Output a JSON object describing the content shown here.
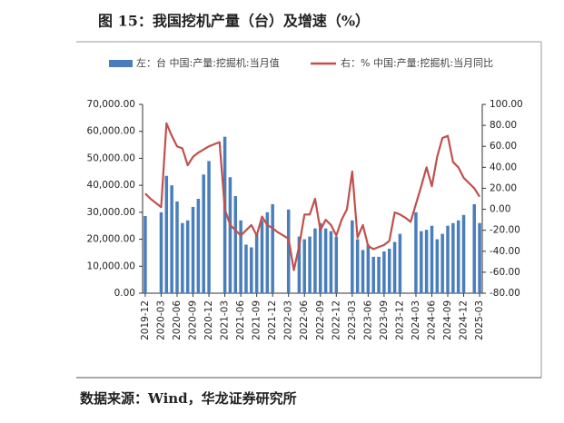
{
  "chart_data": {
    "type": "bar-line",
    "title": "图 15：我国挖机产量（台）及增速（%）",
    "source": "数据来源：Wind，华龙证券研究所",
    "categories": [
      "2019-12",
      null,
      null,
      "2020-03",
      null,
      null,
      "2020-06",
      null,
      null,
      "2020-09",
      null,
      null,
      "2020-12",
      null,
      null,
      "2021-03",
      null,
      null,
      "2021-06",
      null,
      null,
      "2021-09",
      null,
      null,
      "2021-12",
      null,
      null,
      "2022-03",
      null,
      null,
      "2022-06",
      null,
      null,
      "2022-09",
      null,
      null,
      "2022-12",
      null,
      null,
      "2023-03",
      null,
      null,
      "2023-06",
      null,
      null,
      "2023-09",
      null,
      null,
      "2023-12",
      null,
      null,
      "2024-03",
      null,
      null,
      "2024-06",
      null,
      null,
      "2024-09",
      null,
      null,
      "2024-12",
      null,
      null,
      "2025-03"
    ],
    "series": [
      {
        "name": "左：台 中国:产量:挖掘机:当月值",
        "color": "#4a7ebb",
        "axis": "y",
        "values": [
          28600,
          null,
          null,
          30000,
          43500,
          40000,
          34000,
          26000,
          27000,
          32000,
          35000,
          44000,
          49000,
          null,
          null,
          58000,
          43000,
          36000,
          27000,
          18000,
          17000,
          22000,
          27000,
          30000,
          33000,
          null,
          null,
          31000,
          null,
          21000,
          20000,
          21000,
          24000,
          26000,
          24000,
          23000,
          21000,
          null,
          null,
          27000,
          20000,
          16000,
          18000,
          13500,
          13500,
          15500,
          16500,
          19000,
          22000,
          null,
          null,
          30000,
          23000,
          23500,
          25000,
          20000,
          22000,
          25000,
          26000,
          27000,
          29000,
          null,
          33000,
          26000
        ]
      },
      {
        "name": "右：% 中国:产量:挖掘机:当月同比",
        "color": "#c0504d",
        "axis": "y2",
        "values": [
          15,
          10,
          6,
          2,
          82,
          70,
          60,
          58,
          42,
          50,
          54,
          57,
          60,
          62,
          64,
          0,
          -15,
          -20,
          -25,
          -20,
          -15,
          -25,
          -7,
          -15,
          -18,
          -22,
          -25,
          -28,
          -58,
          -35,
          -5,
          -5,
          10,
          -20,
          -10,
          -15,
          -25,
          -10,
          0,
          36,
          -27,
          -15,
          -35,
          -38,
          -36,
          -34,
          -30,
          -3,
          -5,
          -8,
          -12,
          5,
          22,
          40,
          22,
          50,
          68,
          70,
          45,
          40,
          30,
          25,
          20,
          12
        ]
      }
    ],
    "ylim": [
      0,
      70000
    ],
    "yticks": [
      {
        "value": 0,
        "label": "0.00"
      },
      {
        "value": 10000,
        "label": "10,000.00"
      },
      {
        "value": 20000,
        "label": "20,000.00"
      },
      {
        "value": 30000,
        "label": "30,000.00"
      },
      {
        "value": 40000,
        "label": "40,000.00"
      },
      {
        "value": 50000,
        "label": "50,000.00"
      },
      {
        "value": 60000,
        "label": "60,000.00"
      },
      {
        "value": 70000,
        "label": "70,000.00"
      }
    ],
    "y2lim": [
      -80,
      100
    ],
    "y2ticks": [
      {
        "value": -80,
        "label": "-80.00"
      },
      {
        "value": -60,
        "label": "-60.00"
      },
      {
        "value": -40,
        "label": "-40.00"
      },
      {
        "value": -20,
        "label": "-20.00"
      },
      {
        "value": 0,
        "label": "0.00"
      },
      {
        "value": 20,
        "label": "20.00"
      },
      {
        "value": 40,
        "label": "40.00"
      },
      {
        "value": 60,
        "label": "60.00"
      },
      {
        "value": 80,
        "label": "80.00"
      },
      {
        "value": 100,
        "label": "100.00"
      }
    ]
  }
}
